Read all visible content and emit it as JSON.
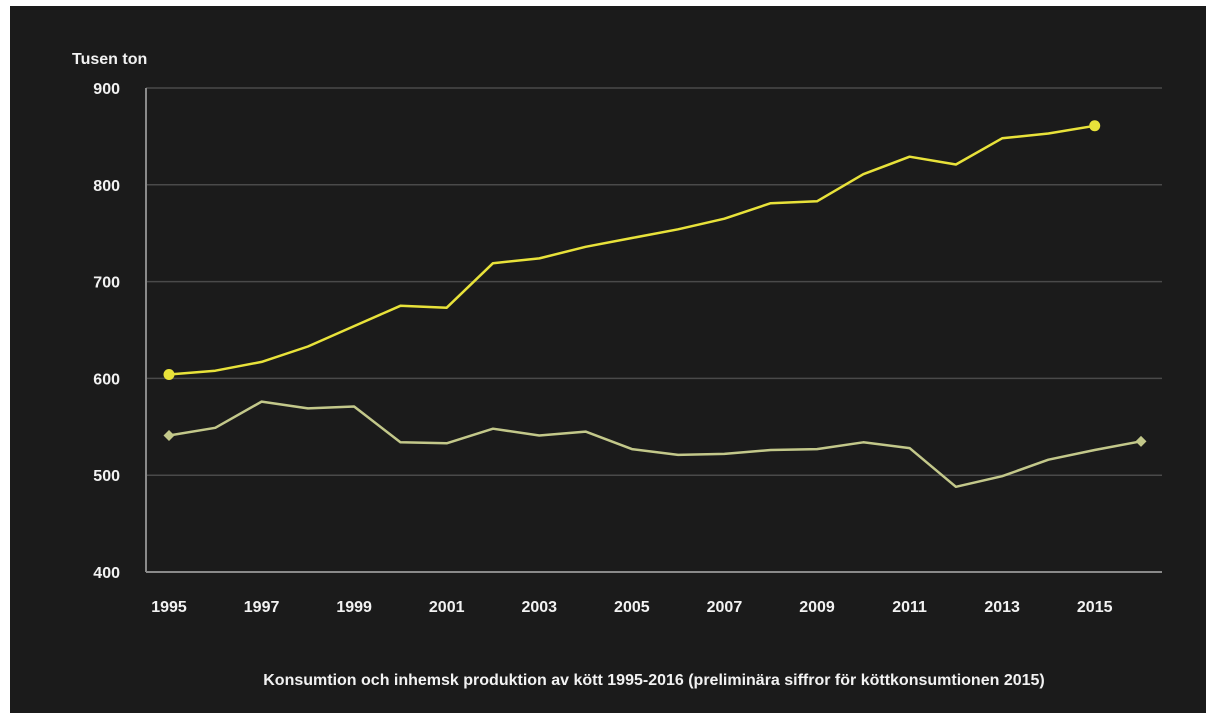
{
  "chart_data": {
    "type": "line",
    "ylabel": "Tusen ton",
    "caption": "Konsumtion och inhemsk produktion av kött 1995-2016 (preliminära siffror för köttkonsumtionen 2015)",
    "ylim": [
      400,
      900
    ],
    "y_ticks": [
      "400",
      "500",
      "600",
      "700",
      "800",
      "900"
    ],
    "x_range": [
      1995,
      2016
    ],
    "x_ticks": [
      "1995",
      "1997",
      "1999",
      "2001",
      "2003",
      "2005",
      "2007",
      "2009",
      "2011",
      "2013",
      "2015"
    ],
    "grid": true,
    "legend": "none",
    "series": [
      {
        "color": "#e8e23a",
        "marker": "circle",
        "x": [
          1995,
          1996,
          1997,
          1998,
          1999,
          2000,
          2001,
          2002,
          2003,
          2004,
          2005,
          2006,
          2007,
          2008,
          2009,
          2010,
          2011,
          2012,
          2013,
          2014,
          2015
        ],
        "values": [
          604,
          608,
          617,
          633,
          654,
          675,
          673,
          719,
          724,
          736,
          745,
          754,
          765,
          781,
          783,
          811,
          829,
          821,
          848,
          853,
          861
        ]
      },
      {
        "color": "#c3c88a",
        "marker": "diamond",
        "x": [
          1995,
          1996,
          1997,
          1998,
          1999,
          2000,
          2001,
          2002,
          2003,
          2004,
          2005,
          2006,
          2007,
          2008,
          2009,
          2010,
          2011,
          2012,
          2013,
          2014,
          2015,
          2016
        ],
        "values": [
          541,
          549,
          576,
          569,
          571,
          534,
          533,
          548,
          541,
          545,
          527,
          521,
          522,
          526,
          527,
          534,
          528,
          488,
          499,
          516,
          526,
          535
        ]
      }
    ]
  }
}
